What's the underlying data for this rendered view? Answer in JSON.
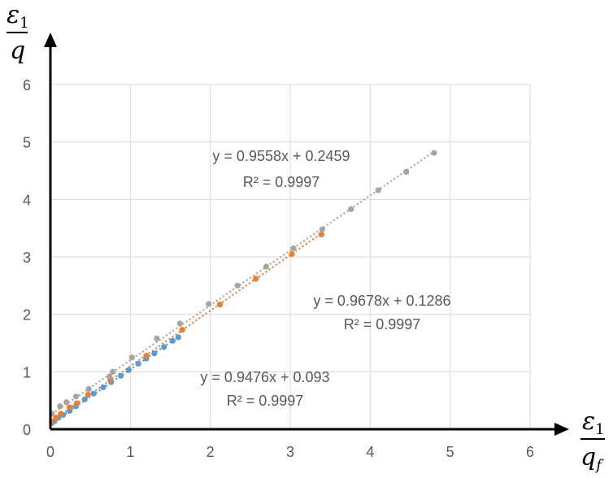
{
  "chart_data": {
    "type": "scatter",
    "xlim": [
      0,
      6
    ],
    "ylim": [
      0,
      6
    ],
    "x_ticks": [
      "0",
      "1",
      "2",
      "3",
      "4",
      "5",
      "6"
    ],
    "y_ticks": [
      "0",
      "1",
      "2",
      "3",
      "4",
      "5",
      "6"
    ],
    "grid": true,
    "legend": "none",
    "xlabel": {
      "num": "ε",
      "num_sub": "1",
      "den": "q",
      "den_sub": "f"
    },
    "ylabel": {
      "num": "ε",
      "num_sub": "1",
      "den": "q"
    },
    "series": [
      {
        "color": "#5B9BD5",
        "trendline": {
          "slope": 0.9476,
          "intercept": 0.093
        },
        "equation": "y = 0.9476x + 0.093",
        "r2": "R² = 0.9997",
        "points": [
          [
            0.02,
            0.11
          ],
          [
            0.05,
            0.14
          ],
          [
            0.1,
            0.2
          ],
          [
            0.16,
            0.25
          ],
          [
            0.24,
            0.32
          ],
          [
            0.32,
            0.4
          ],
          [
            0.43,
            0.52
          ],
          [
            0.54,
            0.62
          ],
          [
            0.66,
            0.73
          ],
          [
            0.76,
            0.82
          ],
          [
            0.88,
            0.93
          ],
          [
            0.98,
            1.03
          ],
          [
            1.1,
            1.14
          ],
          [
            1.2,
            1.23
          ],
          [
            1.3,
            1.32
          ],
          [
            1.42,
            1.43
          ],
          [
            1.53,
            1.54
          ],
          [
            1.6,
            1.6
          ]
        ]
      },
      {
        "color": "#ED7D31",
        "trendline": {
          "slope": 0.9678,
          "intercept": 0.1286
        },
        "equation": "y = 0.9678x + 0.1286",
        "r2": "R² = 0.9997",
        "points": [
          [
            0.02,
            0.13
          ],
          [
            0.07,
            0.2
          ],
          [
            0.13,
            0.27
          ],
          [
            0.24,
            0.38
          ],
          [
            0.33,
            0.45
          ],
          [
            0.47,
            0.6
          ],
          [
            0.75,
            0.86
          ],
          [
            1.2,
            1.28
          ],
          [
            1.65,
            1.73
          ],
          [
            2.12,
            2.17
          ],
          [
            2.57,
            2.62
          ],
          [
            3.02,
            3.05
          ],
          [
            3.39,
            3.39
          ]
        ]
      },
      {
        "color": "#A5A5A5",
        "trendline": {
          "slope": 0.9558,
          "intercept": 0.2459
        },
        "equation": "y = 0.9558x + 0.2459",
        "r2": "R² = 0.9997",
        "points": [
          [
            0.02,
            0.27
          ],
          [
            0.12,
            0.4
          ],
          [
            0.2,
            0.47
          ],
          [
            0.32,
            0.57
          ],
          [
            0.48,
            0.7
          ],
          [
            0.74,
            0.92
          ],
          [
            0.78,
            1.0
          ],
          [
            1.02,
            1.25
          ],
          [
            1.33,
            1.58
          ],
          [
            1.62,
            1.84
          ],
          [
            1.98,
            2.18
          ],
          [
            2.34,
            2.5
          ],
          [
            2.7,
            2.83
          ],
          [
            3.04,
            3.15
          ],
          [
            3.4,
            3.48
          ],
          [
            3.76,
            3.83
          ],
          [
            4.1,
            4.16
          ],
          [
            4.45,
            4.48
          ],
          [
            4.8,
            4.81
          ]
        ]
      }
    ]
  }
}
